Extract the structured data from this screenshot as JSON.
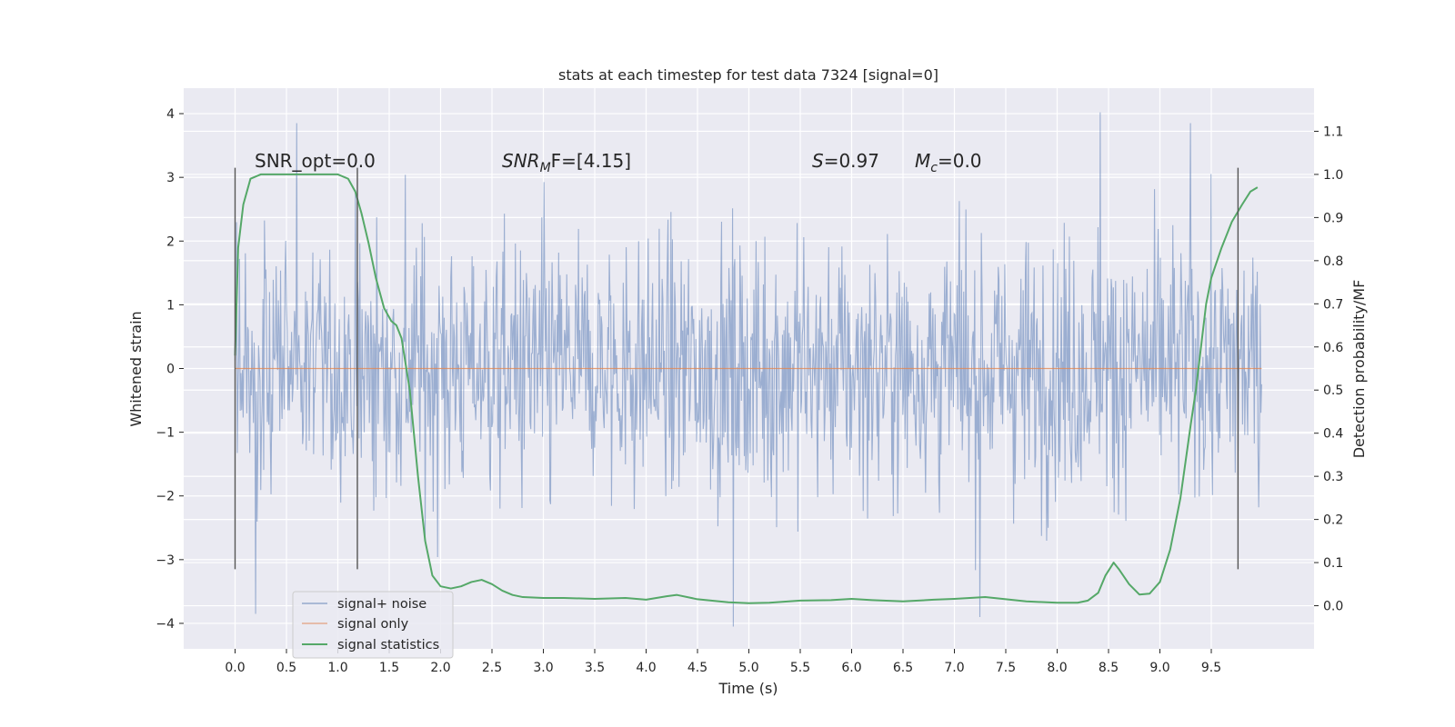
{
  "chart_data": {
    "type": "line",
    "title": "stats at each timestep for test data 7324 [signal=0]",
    "xlabel": "Time (s)",
    "ylabel": "Whitened strain",
    "y2label": "Detection probability/MF",
    "xlim": [
      -0.5,
      10.5
    ],
    "ylim": [
      -4.4,
      4.4
    ],
    "y2lim": [
      -0.1,
      1.2
    ],
    "x_ticks": [
      0.0,
      0.5,
      1.0,
      1.5,
      2.0,
      2.5,
      3.0,
      3.5,
      4.0,
      4.5,
      5.0,
      5.5,
      6.0,
      6.5,
      7.0,
      7.5,
      8.0,
      8.5,
      9.0,
      9.5
    ],
    "y_ticks": [
      -4,
      -3,
      -2,
      -1,
      0,
      1,
      2,
      3,
      4
    ],
    "y2_ticks": [
      0.0,
      0.1,
      0.2,
      0.3,
      0.4,
      0.5,
      0.6,
      0.7,
      0.8,
      0.9,
      1.0,
      1.1
    ],
    "grid": true,
    "legend_position": "lower-left",
    "annotations": {
      "snr_opt": "SNR_opt=0.0",
      "snr_mf_prefix": "SNR",
      "snr_mf_sub": "M",
      "snr_mf_suffix": "F=[4.15]",
      "s_sym": "S",
      "s_val": "=0.97",
      "mc_sym": "M",
      "mc_sub": "c",
      "mc_val": "=0.0"
    },
    "vertical_lines_x": [
      0.0,
      1.19,
      9.76
    ],
    "vertical_lines_yrange": [
      -3.15,
      3.15
    ],
    "series": [
      {
        "name": "signal+ noise",
        "color": "#4c72b0",
        "x_range": [
          0.0,
          9.99
        ],
        "typical_amplitude": 1.3,
        "peak_max": 4.02,
        "peak_min": -4.05,
        "notable_spikes": [
          {
            "x": 0.6,
            "y": 3.85
          },
          {
            "x": 0.2,
            "y": -3.85
          },
          {
            "x": 4.85,
            "y": -4.05
          },
          {
            "x": 7.25,
            "y": -3.9
          },
          {
            "x": 8.42,
            "y": 4.02
          },
          {
            "x": 9.3,
            "y": 3.85
          }
        ]
      },
      {
        "name": "signal only",
        "color": "#dd8452",
        "x": [
          0.0,
          9.99
        ],
        "y": [
          0.0,
          0.0
        ]
      },
      {
        "name": "signal statistics",
        "color": "#55a868",
        "axis": "right",
        "x": [
          0.0,
          0.03,
          0.08,
          0.15,
          0.25,
          0.4,
          0.6,
          0.8,
          1.0,
          1.1,
          1.17,
          1.23,
          1.3,
          1.37,
          1.45,
          1.52,
          1.57,
          1.62,
          1.7,
          1.78,
          1.85,
          1.92,
          2.0,
          2.1,
          2.2,
          2.3,
          2.4,
          2.5,
          2.6,
          2.7,
          2.8,
          3.0,
          3.2,
          3.5,
          3.8,
          4.0,
          4.2,
          4.3,
          4.5,
          4.8,
          5.0,
          5.2,
          5.5,
          5.8,
          6.0,
          6.2,
          6.5,
          6.8,
          7.0,
          7.3,
          7.5,
          7.7,
          8.0,
          8.2,
          8.3,
          8.4,
          8.47,
          8.55,
          8.6,
          8.7,
          8.8,
          8.9,
          9.0,
          9.1,
          9.2,
          9.3,
          9.35,
          9.4,
          9.45,
          9.5,
          9.6,
          9.7,
          9.8,
          9.88,
          9.95
        ],
        "y": [
          0.58,
          0.83,
          0.93,
          0.99,
          1.0,
          1.0,
          1.0,
          1.0,
          1.0,
          0.99,
          0.96,
          0.91,
          0.84,
          0.76,
          0.69,
          0.66,
          0.65,
          0.62,
          0.5,
          0.3,
          0.15,
          0.07,
          0.045,
          0.04,
          0.045,
          0.055,
          0.06,
          0.05,
          0.035,
          0.025,
          0.02,
          0.018,
          0.018,
          0.016,
          0.018,
          0.014,
          0.022,
          0.025,
          0.015,
          0.008,
          0.006,
          0.007,
          0.012,
          0.013,
          0.016,
          0.013,
          0.01,
          0.014,
          0.016,
          0.02,
          0.015,
          0.01,
          0.007,
          0.007,
          0.012,
          0.03,
          0.07,
          0.1,
          0.085,
          0.05,
          0.026,
          0.028,
          0.055,
          0.13,
          0.25,
          0.42,
          0.5,
          0.6,
          0.7,
          0.76,
          0.83,
          0.89,
          0.93,
          0.96,
          0.97
        ]
      }
    ]
  }
}
